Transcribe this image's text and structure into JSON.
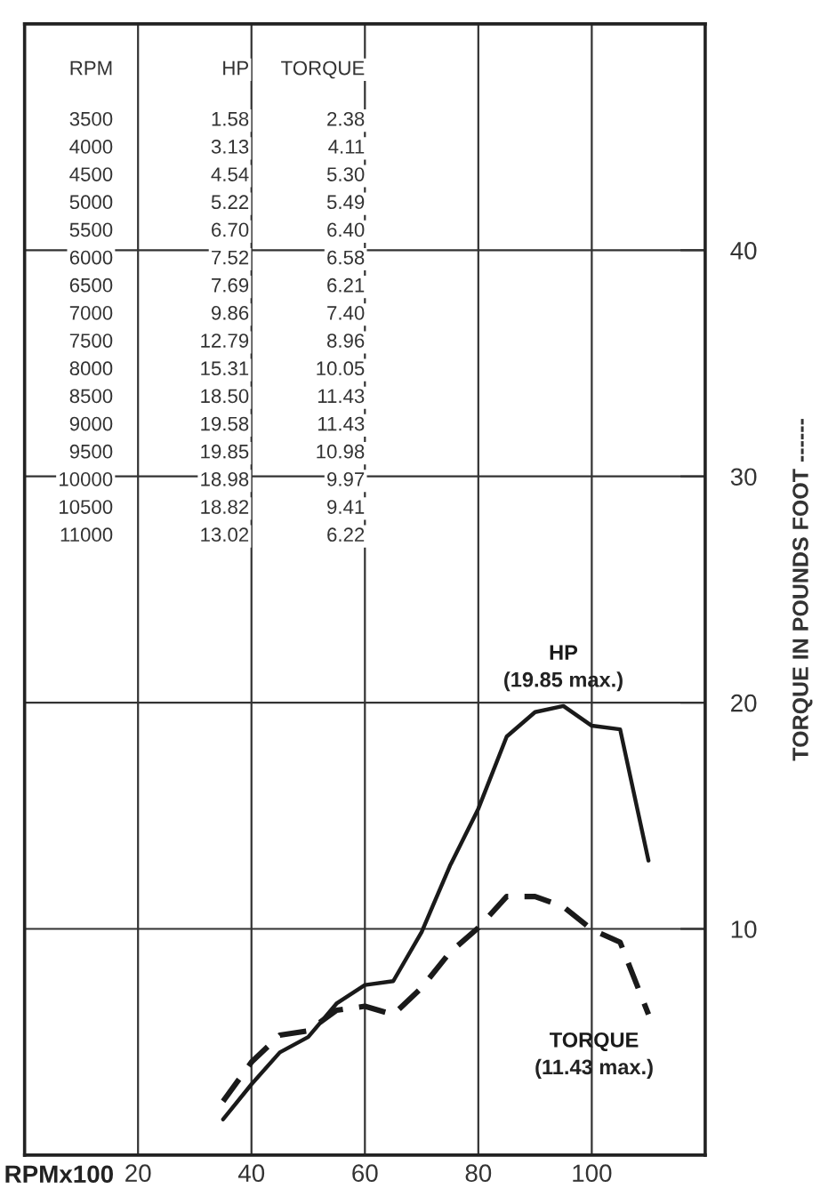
{
  "chart_data": {
    "type": "line",
    "x": [
      35,
      40,
      45,
      50,
      55,
      60,
      65,
      70,
      75,
      80,
      85,
      90,
      95,
      100,
      105,
      110
    ],
    "series": [
      {
        "name": "HP",
        "color": "#1a1a1a",
        "line_style": "solid",
        "values": [
          1.58,
          3.13,
          4.54,
          5.22,
          6.7,
          7.52,
          7.69,
          9.86,
          12.79,
          15.31,
          18.5,
          19.58,
          19.85,
          18.98,
          18.82,
          13.02
        ]
      },
      {
        "name": "TORQUE",
        "color": "#1a1a1a",
        "line_style": "dashed",
        "values": [
          2.38,
          4.11,
          5.3,
          5.49,
          6.4,
          6.58,
          6.21,
          7.4,
          8.96,
          10.05,
          11.43,
          11.43,
          10.98,
          9.97,
          9.41,
          6.22
        ]
      }
    ],
    "xlabel": "RPMx100",
    "ylabel": "TORQUE IN POUNDS FOOT ------",
    "xlim": [
      0,
      120
    ],
    "xticks": [
      20,
      40,
      60,
      80,
      100
    ],
    "ylim": [
      0,
      50
    ],
    "yticks": [
      10,
      20,
      30,
      40
    ],
    "grid": true,
    "marker": "none",
    "annotations": [
      {
        "text": "(19.85 max.)",
        "x": 95,
        "y": 19.85
      },
      "(11.43 max.)",
      "RPM",
      "HP",
      "TORQUE",
      "3500",
      "1.58",
      "2.38",
      "4000",
      "3.13",
      "4.11",
      "4500",
      "4.54",
      "5.30",
      "5000",
      "5.22",
      "5.49",
      "5500",
      "6.70",
      "6.40",
      "6000",
      "7.52",
      "6.58",
      "6500",
      "7.69",
      "6.21",
      "7000",
      "9.86",
      "7.40",
      "7500",
      "12.79",
      "8.96",
      "8000",
      "15.31",
      "10.05",
      "8500",
      "18.50",
      "11.43",
      "9000",
      "19.58",
      "11.43",
      "9500",
      "19.85",
      "10.98",
      "10000",
      "18.98",
      "9.97",
      "10500",
      "18.82",
      "9.41",
      "11000",
      "13.02",
      "6.22"
    ]
  }
}
